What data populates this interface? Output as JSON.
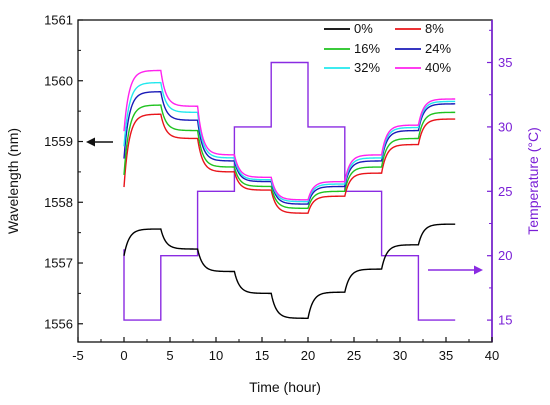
{
  "chart_data": {
    "type": "line",
    "xlabel": "Time (hour)",
    "ylabel": "Wavelength (nm)",
    "y2label": "Temperature (°C)",
    "xlim": [
      -5,
      40
    ],
    "ylim": [
      1555.7,
      1561.0
    ],
    "y2lim": [
      13.3,
      38.3
    ],
    "xticks": [
      -5,
      0,
      5,
      10,
      15,
      20,
      25,
      30,
      35,
      40
    ],
    "yticks": [
      1556,
      1557,
      1558,
      1559,
      1560,
      1561
    ],
    "y2ticks": [
      15,
      20,
      25,
      30,
      35
    ],
    "legend_position": "top-right",
    "colors": {
      "wavelength_axis": "#111111",
      "temperature_axis": "#7a1fd6",
      "temperature_line": "#8a2be2"
    },
    "series": [
      {
        "name": "0%",
        "color": "#000000",
        "axis": "left",
        "levels": [
          1557.56,
          1557.23,
          1556.86,
          1556.5,
          1556.09,
          1556.52,
          1556.9,
          1557.3,
          1557.64
        ]
      },
      {
        "name": "8%",
        "color": "#e8141a",
        "axis": "left",
        "levels": [
          1559.45,
          1559.05,
          1558.5,
          1558.2,
          1557.82,
          1558.1,
          1558.48,
          1558.95,
          1559.37
        ]
      },
      {
        "name": "16%",
        "color": "#1fc21f",
        "axis": "left",
        "levels": [
          1559.6,
          1559.18,
          1558.58,
          1558.26,
          1557.9,
          1558.18,
          1558.58,
          1559.05,
          1559.48
        ]
      },
      {
        "name": "24%",
        "color": "#1a1ab8",
        "axis": "left",
        "levels": [
          1559.82,
          1559.35,
          1558.68,
          1558.34,
          1557.97,
          1558.26,
          1558.68,
          1559.18,
          1559.62
        ]
      },
      {
        "name": "32%",
        "color": "#22e8ee",
        "axis": "left",
        "levels": [
          1559.97,
          1559.48,
          1558.73,
          1558.37,
          1558.01,
          1558.3,
          1558.73,
          1559.23,
          1559.66
        ]
      },
      {
        "name": "40%",
        "color": "#ff22ee",
        "axis": "left",
        "levels": [
          1560.17,
          1559.58,
          1558.78,
          1558.41,
          1558.04,
          1558.34,
          1558.78,
          1559.27,
          1559.7
        ]
      }
    ],
    "temperature": {
      "axis": "right",
      "x": [
        0,
        0,
        4,
        4,
        8,
        8,
        12,
        12,
        16,
        16,
        20,
        20,
        24,
        24,
        28,
        28,
        32,
        32,
        36
      ],
      "y": [
        20.5,
        15,
        15,
        20,
        20,
        25,
        25,
        30,
        30,
        35,
        35,
        30,
        30,
        25,
        25,
        20,
        20,
        15,
        15
      ]
    },
    "step_start_times": [
      0,
      4,
      8,
      12,
      16,
      20,
      24,
      28,
      32
    ],
    "end_time": 36
  }
}
